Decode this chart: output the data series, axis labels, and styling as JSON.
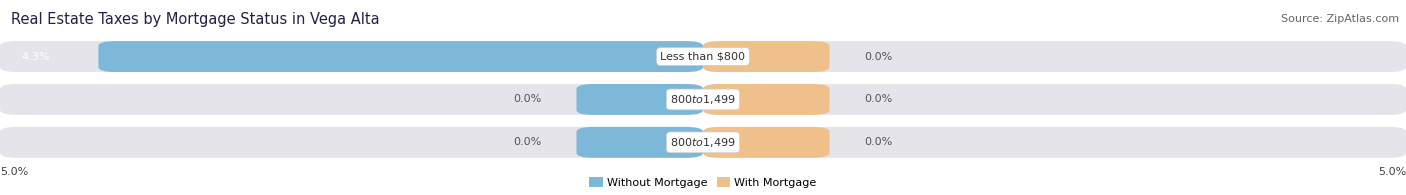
{
  "title": "Real Estate Taxes by Mortgage Status in Vega Alta",
  "source": "Source: ZipAtlas.com",
  "rows": [
    {
      "label": "Less than $800",
      "without_mortgage": 4.3,
      "with_mortgage": 0.0
    },
    {
      "label": "$800 to $1,499",
      "without_mortgage": 0.0,
      "with_mortgage": 0.0
    },
    {
      "label": "$800 to $1,499",
      "without_mortgage": 0.0,
      "with_mortgage": 0.0
    }
  ],
  "max_val": 5.0,
  "bar_color_without": "#7eb8d8",
  "bar_color_with": "#f0c08a",
  "bg_row_color": "#e8e8ec",
  "bg_fig_color": "#ffffff",
  "title_fontsize": 10.5,
  "source_fontsize": 8,
  "bar_label_fontsize": 8,
  "label_fontsize": 8,
  "legend_fontsize": 8,
  "axis_tick_fontsize": 8,
  "axis_label_left": "5.0%",
  "axis_label_right": "5.0%",
  "legend_without": "Without Mortgage",
  "legend_with": "With Mortgage"
}
